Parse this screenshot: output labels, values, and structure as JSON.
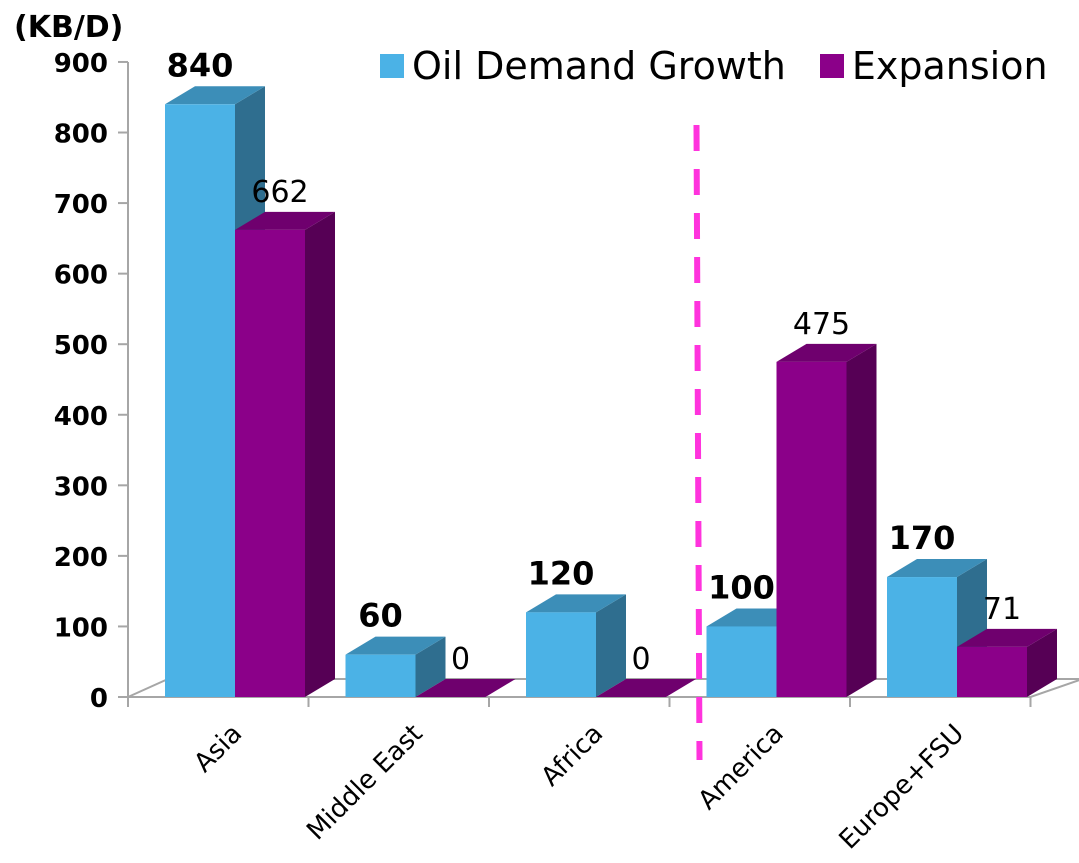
{
  "chart_data": {
    "type": "bar",
    "unit_label": "(KB/D)",
    "categories": [
      "Asia",
      "Middle East",
      "Africa",
      "America",
      "Europe+FSU"
    ],
    "series": [
      {
        "name": "Oil Demand Growth",
        "values": [
          840,
          60,
          120,
          100,
          170
        ],
        "color": "#4BB2E6",
        "label_bold": true
      },
      {
        "name": "Expansion",
        "values": [
          662,
          0,
          0,
          475,
          71
        ],
        "color": "#8B0089",
        "label_bold": false
      }
    ],
    "ylim": [
      0,
      900
    ],
    "yticks": [
      0,
      100,
      200,
      300,
      400,
      500,
      600,
      700,
      800,
      900
    ],
    "legend_position": "top-right",
    "grid": false,
    "style": "3d",
    "divider": {
      "between_categories": [
        "Africa",
        "America"
      ],
      "color": "#FF33DD",
      "style": "dashed"
    }
  }
}
